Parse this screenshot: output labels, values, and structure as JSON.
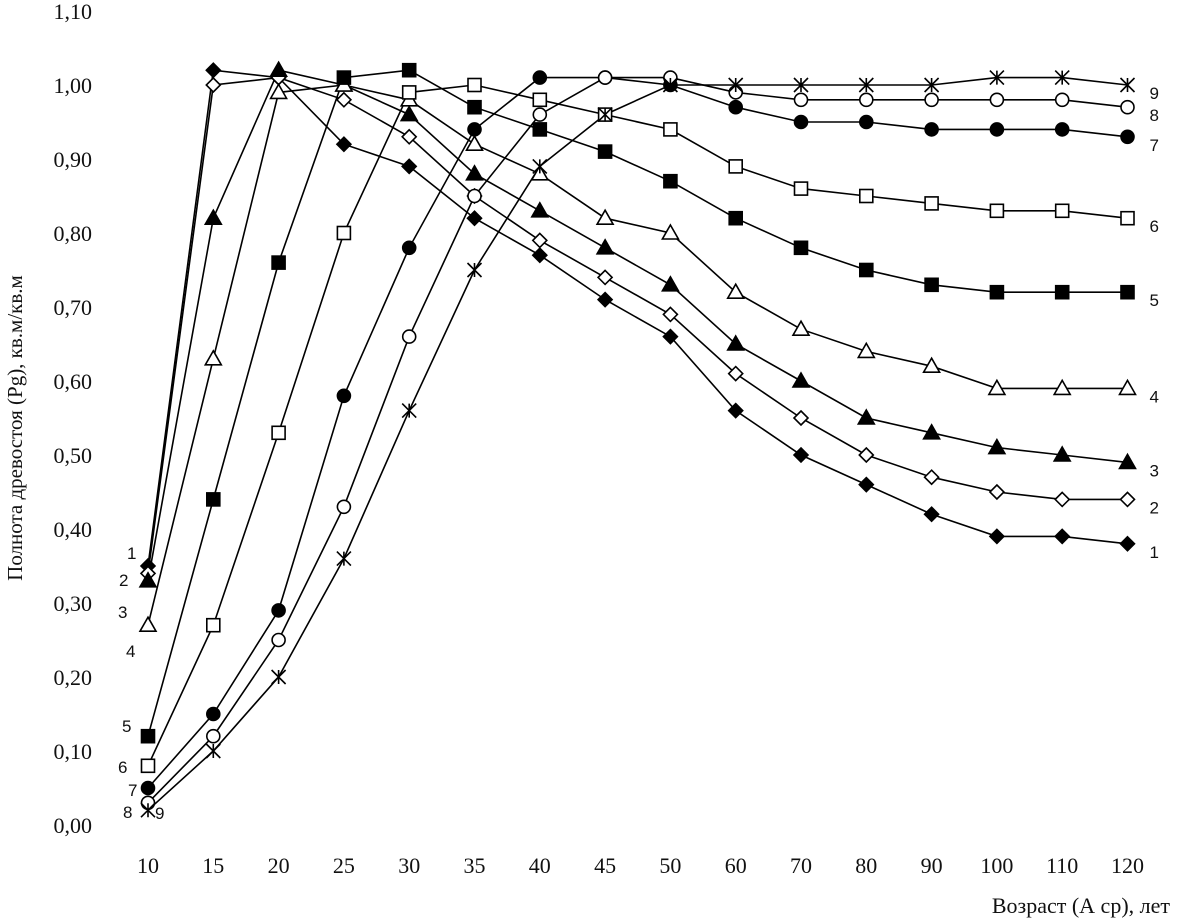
{
  "chart_data": {
    "type": "line",
    "title": "",
    "xlabel": "Возраст (А ср), лет",
    "ylabel": "Полнота древостоя (Pg), кв.м/кв.м",
    "x": [
      10,
      15,
      20,
      25,
      30,
      35,
      40,
      45,
      50,
      60,
      70,
      80,
      90,
      100,
      110,
      120
    ],
    "x_tick_labels": [
      "10",
      "15",
      "20",
      "25",
      "30",
      "35",
      "40",
      "45",
      "50",
      "60",
      "70",
      "80",
      "90",
      "100",
      "110",
      "120"
    ],
    "y_tick_labels": [
      "0,00",
      "0,10",
      "0,20",
      "0,30",
      "0,40",
      "0,50",
      "0,60",
      "0,70",
      "0,80",
      "0,90",
      "1,00",
      "1,10"
    ],
    "ylim": [
      0,
      1.1
    ],
    "grid": false,
    "legend": "series numbers at line ends",
    "series": [
      {
        "name": "1",
        "marker": "diamond-filled",
        "values": [
          0.35,
          1.02,
          1.01,
          0.92,
          0.89,
          0.82,
          0.77,
          0.71,
          0.66,
          0.56,
          0.5,
          0.46,
          0.42,
          0.39,
          0.39,
          0.38
        ]
      },
      {
        "name": "2",
        "marker": "diamond-open",
        "values": [
          0.34,
          1.0,
          1.01,
          0.98,
          0.93,
          0.85,
          0.79,
          0.74,
          0.69,
          0.61,
          0.55,
          0.5,
          0.47,
          0.45,
          0.44,
          0.44
        ]
      },
      {
        "name": "3",
        "marker": "triangle-filled",
        "values": [
          0.33,
          0.82,
          1.02,
          1.0,
          0.96,
          0.88,
          0.83,
          0.78,
          0.73,
          0.65,
          0.6,
          0.55,
          0.53,
          0.51,
          0.5,
          0.49
        ]
      },
      {
        "name": "4",
        "marker": "triangle-open",
        "values": [
          0.27,
          0.63,
          0.99,
          1.0,
          0.98,
          0.92,
          0.88,
          0.82,
          0.8,
          0.72,
          0.67,
          0.64,
          0.62,
          0.59,
          0.59,
          0.59
        ]
      },
      {
        "name": "5",
        "marker": "square-filled",
        "values": [
          0.12,
          0.44,
          0.76,
          1.01,
          1.02,
          0.97,
          0.94,
          0.91,
          0.87,
          0.82,
          0.78,
          0.75,
          0.73,
          0.72,
          0.72,
          0.72
        ]
      },
      {
        "name": "6",
        "marker": "square-open",
        "values": [
          0.08,
          0.27,
          0.53,
          0.8,
          0.99,
          1.0,
          0.98,
          0.96,
          0.94,
          0.89,
          0.86,
          0.85,
          0.84,
          0.83,
          0.83,
          0.82
        ]
      },
      {
        "name": "7",
        "marker": "circle-filled",
        "values": [
          0.05,
          0.15,
          0.29,
          0.58,
          0.78,
          0.94,
          1.01,
          1.01,
          1.0,
          0.97,
          0.95,
          0.95,
          0.94,
          0.94,
          0.94,
          0.93
        ]
      },
      {
        "name": "8",
        "marker": "circle-open",
        "values": [
          0.03,
          0.12,
          0.25,
          0.43,
          0.66,
          0.85,
          0.96,
          1.01,
          1.01,
          0.99,
          0.98,
          0.98,
          0.98,
          0.98,
          0.98,
          0.97
        ]
      },
      {
        "name": "9",
        "marker": "star",
        "values": [
          0.02,
          0.1,
          0.2,
          0.36,
          0.56,
          0.75,
          0.89,
          0.96,
          1.0,
          1.0,
          1.0,
          1.0,
          1.0,
          1.01,
          1.01,
          1.0
        ]
      }
    ]
  }
}
